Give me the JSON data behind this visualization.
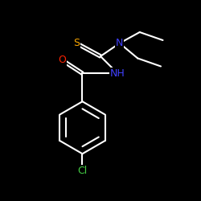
{
  "bg_color": "#000000",
  "atom_colors": {
    "C": "#ffffff",
    "N": "#4040ff",
    "O": "#ff2200",
    "S": "#ffaa00",
    "Cl": "#44cc44",
    "H": "#ffffff"
  },
  "bond_color": "#ffffff",
  "bond_width": 1.5,
  "font_size": 9,
  "figsize": [
    2.5,
    2.5
  ],
  "dpi": 100,
  "xlim": [
    0,
    10
  ],
  "ylim": [
    0,
    10
  ]
}
